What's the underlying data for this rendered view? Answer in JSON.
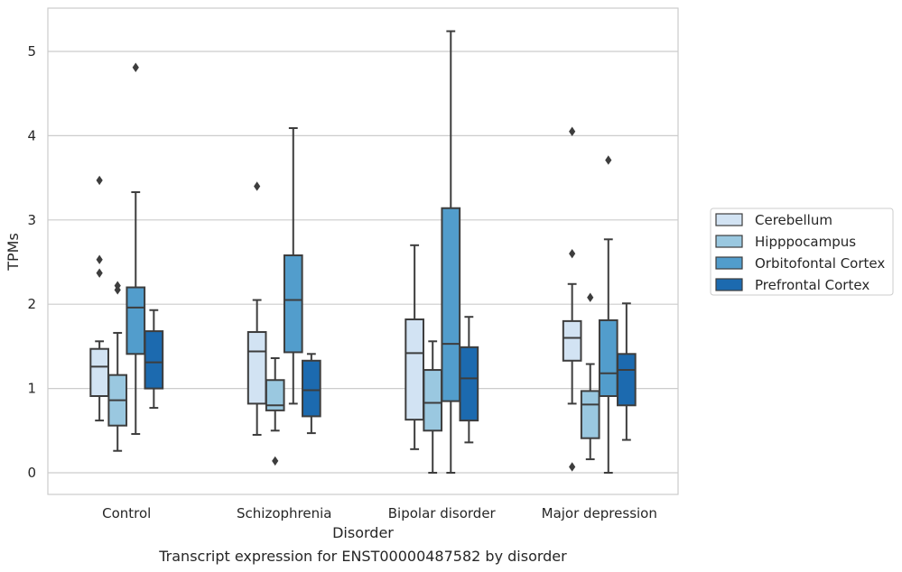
{
  "chart_data": {
    "type": "box",
    "title": "",
    "xlabel": "Disorder",
    "ylabel": "TPMs",
    "caption": "Transcript expression for ENST00000487582 by disorder",
    "categories": [
      "Control",
      "Schizophrenia",
      "Bipolar disorder",
      "Major depression"
    ],
    "ylim": [
      -0.25,
      5.5
    ],
    "yticks": [
      0,
      1,
      2,
      3,
      4,
      5
    ],
    "grid": "horizontal",
    "legend_position": "right",
    "series": [
      {
        "name": "Cerebellum",
        "color": "#d2e3f3",
        "boxes": [
          {
            "whislo": 0.62,
            "q1": 0.91,
            "med": 1.26,
            "q3": 1.47,
            "whishi": 1.56,
            "fliers": [
              3.47,
              2.53,
              2.37
            ]
          },
          {
            "whislo": 0.45,
            "q1": 0.82,
            "med": 1.44,
            "q3": 1.67,
            "whishi": 2.05,
            "fliers": [
              3.4
            ]
          },
          {
            "whislo": 0.28,
            "q1": 0.63,
            "med": 1.42,
            "q3": 1.82,
            "whishi": 2.7,
            "fliers": []
          },
          {
            "whislo": 0.82,
            "q1": 1.33,
            "med": 1.6,
            "q3": 1.8,
            "whishi": 2.24,
            "fliers": [
              4.05,
              2.6,
              0.07
            ]
          }
        ]
      },
      {
        "name": "Hipppocampus",
        "color": "#9ac8e0",
        "boxes": [
          {
            "whislo": 0.26,
            "q1": 0.56,
            "med": 0.86,
            "q3": 1.16,
            "whishi": 1.66,
            "fliers": [
              2.22,
              2.17
            ]
          },
          {
            "whislo": 0.5,
            "q1": 0.74,
            "med": 0.8,
            "q3": 1.1,
            "whishi": 1.36,
            "fliers": [
              0.14
            ]
          },
          {
            "whislo": 0.0,
            "q1": 0.5,
            "med": 0.83,
            "q3": 1.22,
            "whishi": 1.56,
            "fliers": []
          },
          {
            "whislo": 0.16,
            "q1": 0.41,
            "med": 0.81,
            "q3": 0.97,
            "whishi": 1.29,
            "fliers": [
              2.08
            ]
          }
        ]
      },
      {
        "name": "Orbitofontal Cortex",
        "color": "#529dcc",
        "boxes": [
          {
            "whislo": 0.46,
            "q1": 1.41,
            "med": 1.96,
            "q3": 2.2,
            "whishi": 3.33,
            "fliers": [
              4.81
            ]
          },
          {
            "whislo": 0.82,
            "q1": 1.43,
            "med": 2.05,
            "q3": 2.58,
            "whishi": 4.09,
            "fliers": []
          },
          {
            "whislo": 0.0,
            "q1": 0.85,
            "med": 1.53,
            "q3": 3.14,
            "whishi": 5.24,
            "fliers": []
          },
          {
            "whislo": 0.0,
            "q1": 0.91,
            "med": 1.18,
            "q3": 1.81,
            "whishi": 2.77,
            "fliers": [
              3.71
            ]
          }
        ]
      },
      {
        "name": "Prefrontal Cortex",
        "color": "#1c6aaf",
        "boxes": [
          {
            "whislo": 0.77,
            "q1": 1.0,
            "med": 1.31,
            "q3": 1.68,
            "whishi": 1.93,
            "fliers": []
          },
          {
            "whislo": 0.47,
            "q1": 0.67,
            "med": 0.98,
            "q3": 1.33,
            "whishi": 1.41,
            "fliers": []
          },
          {
            "whislo": 0.36,
            "q1": 0.62,
            "med": 1.12,
            "q3": 1.49,
            "whishi": 1.85,
            "fliers": []
          },
          {
            "whislo": 0.39,
            "q1": 0.8,
            "med": 1.22,
            "q3": 1.41,
            "whishi": 2.01,
            "fliers": []
          }
        ]
      }
    ]
  }
}
